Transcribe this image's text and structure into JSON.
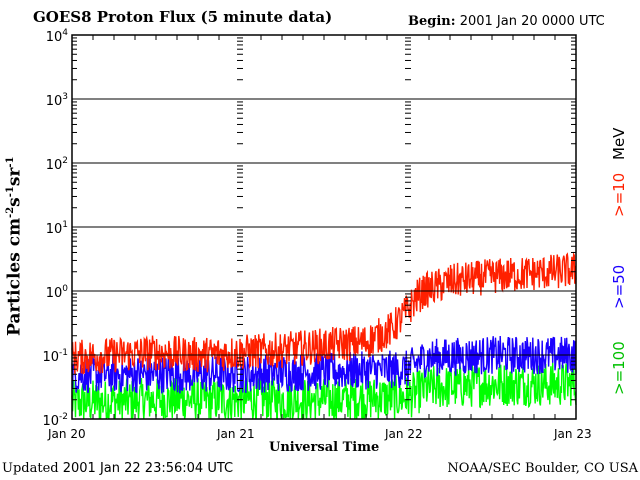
{
  "chart_data": {
    "type": "line",
    "title": "GOES8 Proton Flux (5 minute data)",
    "begin": {
      "label": "Begin:",
      "value": "2001 Jan 20 0000 UTC"
    },
    "xlabel": "Universal Time",
    "ylabel": "Particles cm",
    "ylabel_units": [
      {
        "base": "-2",
        "sup": true
      },
      {
        "base": "s",
        "sup": false
      },
      {
        "base": "-1",
        "sup": true
      },
      {
        "base": "sr",
        "sup": false
      },
      {
        "base": "-1",
        "sup": true
      }
    ],
    "x_tick_labels": [
      "Jan 20",
      "Jan 21",
      "Jan 22",
      "Jan 23"
    ],
    "x_range_days": [
      0,
      3
    ],
    "yscale": "log",
    "ylim": [
      0.01,
      10000
    ],
    "y_tick_labels": [
      {
        "base": "10",
        "exp": "-2"
      },
      {
        "base": "10",
        "exp": "-1"
      },
      {
        "base": "10",
        "exp": "0"
      },
      {
        "base": "10",
        "exp": "1"
      },
      {
        "base": "10",
        "exp": "2"
      },
      {
        "base": "10",
        "exp": "3"
      },
      {
        "base": "10",
        "exp": "4"
      }
    ],
    "legend_unit": "MeV",
    "series": [
      {
        "name": ">=10",
        "color": "#ff2000",
        "x_days": [
          0.0,
          0.25,
          0.5,
          0.75,
          1.0,
          1.25,
          1.5,
          1.75,
          1.9,
          2.0,
          2.05,
          2.1,
          2.25,
          2.5,
          2.75,
          3.0
        ],
        "y": [
          0.09,
          0.1,
          0.11,
          0.1,
          0.11,
          0.12,
          0.14,
          0.16,
          0.25,
          0.5,
          0.8,
          1.0,
          1.4,
          1.7,
          1.9,
          2.1
        ]
      },
      {
        "name": ">=50",
        "color": "#1a00ff",
        "x_days": [
          0.0,
          0.5,
          1.0,
          1.5,
          2.0,
          2.1,
          2.5,
          3.0
        ],
        "y": [
          0.05,
          0.05,
          0.05,
          0.055,
          0.06,
          0.09,
          0.1,
          0.1
        ]
      },
      {
        "name": ">=100",
        "color": "#00ff00",
        "x_days": [
          0.0,
          0.5,
          1.0,
          1.5,
          2.0,
          2.1,
          2.5,
          3.0
        ],
        "y": [
          0.018,
          0.02,
          0.02,
          0.02,
          0.022,
          0.03,
          0.035,
          0.035
        ]
      }
    ]
  },
  "footer": {
    "updated_label": "Updated",
    "updated_value": "2001 Jan 22 23:56:04 UTC",
    "source": "NOAA/SEC Boulder, CO USA"
  }
}
